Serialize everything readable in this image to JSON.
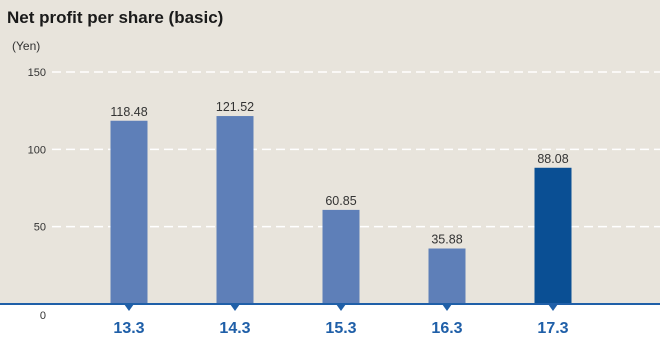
{
  "chart_data": {
    "type": "bar",
    "title": "Net profit per share (basic)",
    "unit": "(Yen)",
    "categories": [
      "13.3",
      "14.3",
      "15.3",
      "16.3",
      "17.3"
    ],
    "values": [
      118.48,
      121.52,
      60.85,
      35.88,
      88.08
    ],
    "value_labels": [
      "118.48",
      "121.52",
      "60.85",
      "35.88",
      "88.08"
    ],
    "ylim": [
      0,
      150
    ],
    "yticks": [
      "0",
      "50",
      "100",
      "150"
    ],
    "grid": true,
    "legend": "none",
    "colors": {
      "background": "#e8e4dc",
      "bar": "#5e7fb8",
      "bar_highlight": "#0a4f94",
      "axis": "#1f5fa8",
      "category_text": "#1f5fa8",
      "grid": "#ffffff"
    },
    "highlight_index": 4
  }
}
